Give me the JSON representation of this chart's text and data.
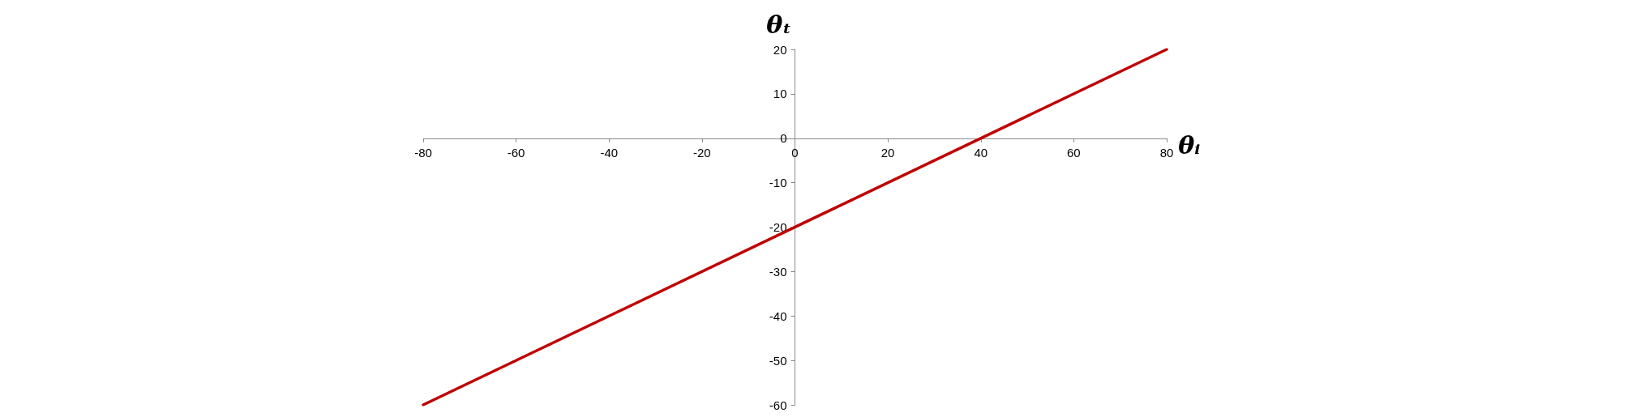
{
  "chart_data": {
    "type": "line",
    "xlabel": "θᵢ",
    "ylabel": "θₜ",
    "x": [
      -80,
      80
    ],
    "series": [
      {
        "color": "#c00000",
        "values": [
          -60,
          20
        ]
      }
    ],
    "xlim": [
      -80,
      80
    ],
    "xticks": [
      -80,
      -60,
      -40,
      -20,
      0,
      20,
      40,
      60,
      80
    ],
    "ylim": [
      -60,
      20
    ],
    "yticks": [
      -60,
      -50,
      -40,
      -30,
      -20,
      -10,
      0,
      10,
      20
    ],
    "grid": false,
    "marker": "none",
    "line_style": "solid"
  }
}
